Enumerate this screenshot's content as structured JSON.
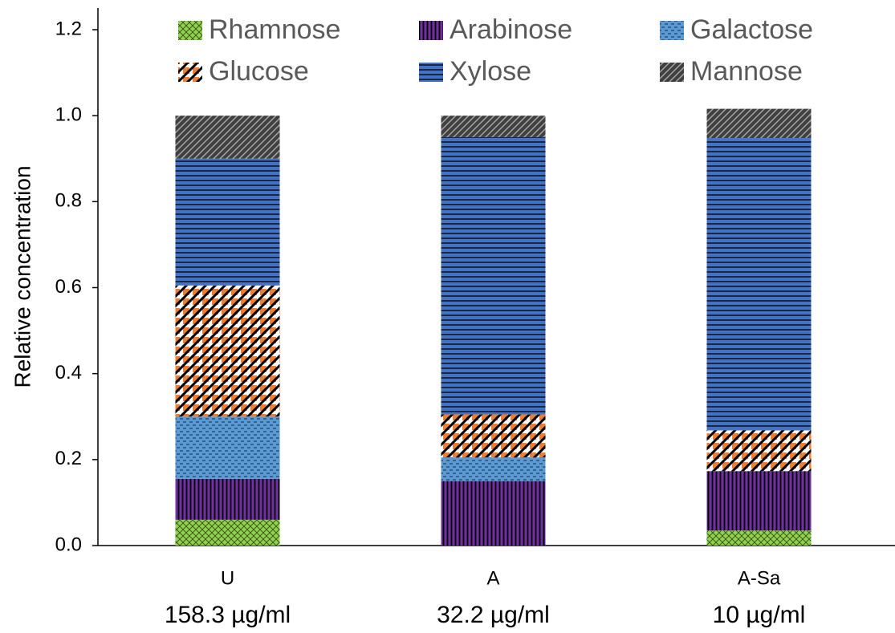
{
  "chart_data": {
    "type": "stacked_bar",
    "y_label": "Relative concentration",
    "categories": [
      [
        "U",
        "158.3 µg/ml"
      ],
      [
        "A",
        "32.2 µg/ml"
      ],
      [
        "A-Sa",
        "10 µg/ml"
      ]
    ],
    "series": [
      {
        "name": "Rhamnose",
        "color": "#92d050",
        "pattern": "crosshatch",
        "values": [
          0.06,
          0,
          0.035
        ]
      },
      {
        "name": "Arabinose",
        "color": "#7030a0",
        "pattern": "vertical",
        "values": [
          0.095,
          0.15,
          0.138
        ]
      },
      {
        "name": "Galactose",
        "color": "#5b9bd5",
        "pattern": "dashed",
        "values": [
          0.145,
          0.055,
          0
        ]
      },
      {
        "name": "Glucose",
        "color": "#ed7d31",
        "pattern": "diagonal",
        "values": [
          0.305,
          0.1,
          0.095
        ]
      },
      {
        "name": "Xylose",
        "color": "#4472c4",
        "pattern": "horizontal",
        "values": [
          0.295,
          0.645,
          0.68
        ]
      },
      {
        "name": "Mannose",
        "color": "#404040",
        "pattern": "diagonal-light",
        "values": [
          0.1,
          0.05,
          0.068
        ]
      }
    ],
    "ylim": [
      0,
      1.2
    ],
    "yticks": [
      {
        "value": 0,
        "label": "0.0"
      },
      {
        "value": 0.2,
        "label": "0.2"
      },
      {
        "value": 0.4,
        "label": "0.4"
      },
      {
        "value": 0.6,
        "label": "0.6"
      },
      {
        "value": 0.8,
        "label": "0.8"
      },
      {
        "value": 1.0,
        "label": "1.0"
      },
      {
        "value": 1.2,
        "label": "1.2"
      }
    ],
    "legend": "top"
  }
}
